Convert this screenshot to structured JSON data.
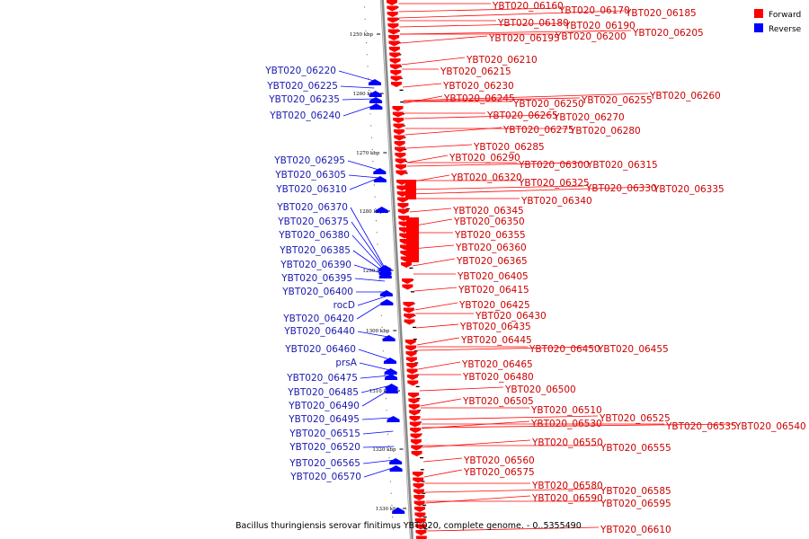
{
  "colors": {
    "forward": "#ff0000",
    "reverse": "#0000ff",
    "forward_text": "#cc0000",
    "reverse_text": "#1a1ab0",
    "backbone": "#888888"
  },
  "legend": {
    "forward": "Forward",
    "reverse": "Reverse"
  },
  "caption": "Bacillus thuringiensis serovar finitimus YBT-020, complete genome. - 0..5355490",
  "ticks": [
    "1250 kbp",
    "1260 kbp",
    "1270 kbp",
    "1280 kbp",
    "1290 kbp",
    "1300 kbp",
    "1310 kbp",
    "1320 kbp",
    "1330 kbp"
  ],
  "forward_labels": [
    "YBT020_06160",
    "YBT020_06170",
    "YBT020_06185",
    "YBT020_06180",
    "YBT020_06190",
    "YBT020_06195",
    "YBT020_06200",
    "YBT020_06205",
    "YBT020_06210",
    "YBT020_06215",
    "YBT020_06230",
    "YBT020_06245",
    "YBT020_06250",
    "YBT020_06255",
    "YBT020_06260",
    "YBT020_06265",
    "YBT020_06270",
    "YBT020_06275",
    "YBT020_06280",
    "YBT020_06285",
    "YBT020_06290",
    "YBT020_06300",
    "YBT020_06315",
    "YBT020_06320",
    "YBT020_06325",
    "YBT020_06330",
    "YBT020_06335",
    "YBT020_06340",
    "YBT020_06345",
    "YBT020_06350",
    "YBT020_06355",
    "YBT020_06360",
    "YBT020_06365",
    "YBT020_06405",
    "YBT020_06415",
    "YBT020_06425",
    "YBT020_06430",
    "YBT020_06435",
    "YBT020_06445",
    "YBT020_06450",
    "YBT020_06455",
    "YBT020_06465",
    "YBT020_06480",
    "YBT020_06500",
    "YBT020_06505",
    "YBT020_06510",
    "YBT020_06525",
    "YBT020_06530",
    "YBT020_06535",
    "YBT020_06540",
    "YBT020_06550",
    "YBT020_06555",
    "YBT020_06560",
    "YBT020_06575",
    "YBT020_06580",
    "YBT020_06585",
    "YBT020_06590",
    "YBT020_06595",
    "YBT020_06610"
  ],
  "reverse_labels": [
    "YBT020_06220",
    "YBT020_06225",
    "YBT020_06235",
    "YBT020_06240",
    "YBT020_06295",
    "YBT020_06305",
    "YBT020_06310",
    "YBT020_06370",
    "YBT020_06375",
    "YBT020_06380",
    "YBT020_06385",
    "YBT020_06390",
    "YBT020_06395",
    "YBT020_06400",
    "rocD",
    "YBT020_06420",
    "YBT020_06440",
    "YBT020_06460",
    "prsA",
    "YBT020_06475",
    "YBT020_06485",
    "YBT020_06490",
    "YBT020_06495",
    "YBT020_06515",
    "YBT020_06520",
    "YBT020_06565",
    "YBT020_06570"
  ]
}
